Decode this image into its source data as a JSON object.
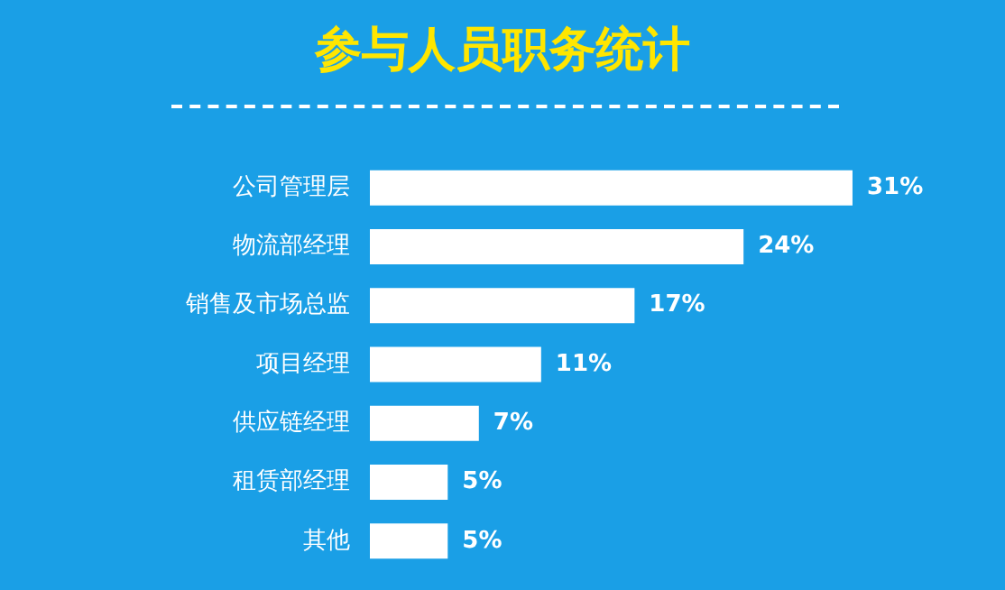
{
  "chart_data": {
    "type": "bar",
    "orientation": "horizontal",
    "title": "参与人员职务统计",
    "categories": [
      "公司管理层",
      "物流部经理",
      "销售及市场总监",
      "项目经理",
      "供应链经理",
      "租赁部经理",
      "其他"
    ],
    "values": [
      31,
      24,
      17,
      11,
      7,
      5,
      5
    ],
    "value_labels": [
      "31%",
      "24%",
      "17%",
      "11%",
      "7%",
      "5%",
      "5%"
    ],
    "color": "#ffffff",
    "grid": false,
    "legend": false
  }
}
